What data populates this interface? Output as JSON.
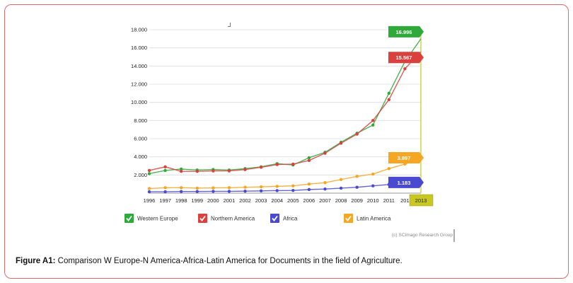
{
  "caption": {
    "label": "Figure A1:",
    "text": "Comparison W Europe-N America-Africa-Latin America for Documents in the field of Agriculture."
  },
  "credit": "(c) SCImago Research Group",
  "chart_data": {
    "type": "line",
    "title": "",
    "xlabel": "",
    "ylabel": "",
    "x": [
      "1996",
      "1997",
      "1998",
      "1999",
      "2000",
      "2001",
      "2002",
      "2003",
      "2004",
      "2005",
      "2006",
      "2007",
      "2008",
      "2009",
      "2010",
      "2011",
      "201",
      "2013"
    ],
    "ylim": [
      0,
      18000
    ],
    "yticks": [
      "18.000",
      "16.000",
      "14.000",
      "12.000",
      "10.000",
      "8.000",
      "6.000",
      "4.000",
      "2.000"
    ],
    "ytick_values": [
      18000,
      16000,
      14000,
      12000,
      10000,
      8000,
      6000,
      4000,
      2000
    ],
    "grid": true,
    "legend": "bottom",
    "highlighted_x": "2013",
    "series": [
      {
        "name": "Western Europe",
        "color": "#2eaa3a",
        "values": [
          2150,
          2500,
          2650,
          2550,
          2600,
          2550,
          2700,
          2900,
          3250,
          3100,
          3900,
          4500,
          5600,
          6600,
          7500,
          11000,
          14500,
          16996
        ],
        "end_label": "16.996"
      },
      {
        "name": "Northern America",
        "color": "#d9403e",
        "values": [
          2500,
          2900,
          2400,
          2400,
          2450,
          2450,
          2600,
          2850,
          3150,
          3200,
          3600,
          4400,
          5500,
          6500,
          8000,
          10300,
          13700,
          15567
        ],
        "end_label": "15.567"
      },
      {
        "name": "Africa",
        "color": "#4a4ad0",
        "values": [
          150,
          150,
          180,
          180,
          200,
          200,
          220,
          250,
          280,
          300,
          400,
          450,
          550,
          650,
          800,
          950,
          1050,
          1183
        ],
        "end_label": "1.183"
      },
      {
        "name": "Latin America",
        "color": "#f5a623",
        "values": [
          500,
          600,
          600,
          550,
          580,
          600,
          650,
          700,
          750,
          800,
          1000,
          1150,
          1500,
          1850,
          2100,
          2700,
          3200,
          3897
        ],
        "end_label": "3.897"
      }
    ]
  }
}
